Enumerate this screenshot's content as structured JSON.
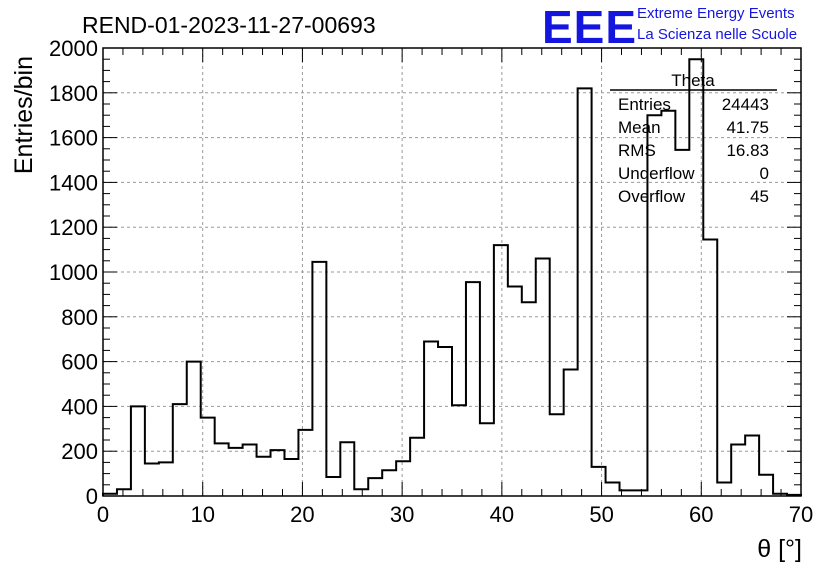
{
  "chart_data": {
    "type": "histogram",
    "title": "REND-01-2023-11-27-00693",
    "xlabel": "θ [°]",
    "ylabel": "Entries/bin",
    "xlim": [
      0,
      70
    ],
    "ylim": [
      0,
      2000
    ],
    "grid": true,
    "bin_width": 1.67,
    "values": [
      10,
      30,
      400,
      145,
      150,
      410,
      600,
      350,
      235,
      215,
      230,
      175,
      205,
      165,
      295,
      1045,
      85,
      240,
      30,
      80,
      115,
      155,
      260,
      690,
      665,
      405,
      955,
      325,
      1120,
      935,
      865,
      1060,
      365,
      565,
      1820,
      130,
      60,
      25,
      25,
      1700,
      1720,
      1545,
      1950,
      1145,
      60,
      230,
      270,
      95,
      10,
      5
    ],
    "x_ticks": [
      "0",
      "10",
      "20",
      "30",
      "40",
      "50",
      "60",
      "70"
    ],
    "y_ticks": [
      "0",
      "200",
      "400",
      "600",
      "800",
      "1000",
      "1200",
      "1400",
      "1600",
      "1800",
      "2000"
    ],
    "stats_box": {
      "title": "Theta",
      "rows": [
        {
          "label": "Entries",
          "value": "24443"
        },
        {
          "label": "Mean",
          "value": "41.75"
        },
        {
          "label": "RMS",
          "value": "16.83"
        },
        {
          "label": "Underflow",
          "value": "0"
        },
        {
          "label": "Overflow",
          "value": "45"
        }
      ]
    }
  },
  "logo": {
    "text": "EEE",
    "line1": "Extreme Energy Events",
    "line2": "La Scienza nelle Scuole",
    "color": "#1515e0"
  }
}
